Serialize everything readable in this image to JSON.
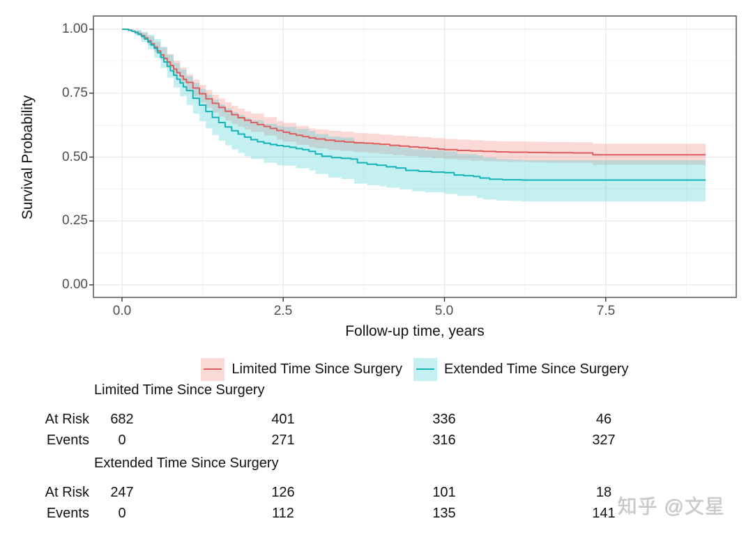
{
  "figure": {
    "watermark": "知乎 @文星"
  },
  "chart_data": {
    "type": "line",
    "subtype": "kaplan-meier-step-with-confidence-bands",
    "title": "",
    "xlabel": "Follow-up time, years",
    "ylabel": "Survival Probability",
    "xlim": [
      -0.45,
      9.5
    ],
    "ylim": [
      -0.05,
      1.05
    ],
    "x_ticks": [
      0,
      2.5,
      5,
      7.5
    ],
    "x_tick_labels": [
      "0.0",
      "2.5",
      "5.0",
      "7.5"
    ],
    "x_minor_ticks": [
      1.25,
      3.75,
      6.25,
      8.75
    ],
    "y_ticks": [
      0,
      0.25,
      0.5,
      0.75,
      1
    ],
    "y_tick_labels": [
      "0.00",
      "0.25",
      "0.50",
      "0.75",
      "1.00"
    ],
    "y_minor_ticks": [
      0.125,
      0.375,
      0.625,
      0.875
    ],
    "grid": true,
    "legend_position": "bottom",
    "t_max": 9.05,
    "panel_border_color": "#4a4a4a",
    "major_grid_color": "#e8e8e8",
    "minor_grid_color": "#f3f3f3",
    "series": [
      {
        "name": "Limited Time Since Surgery",
        "line_color": "#de5c5c",
        "band_color": "rgba(240,128,122,0.30)",
        "points": [
          [
            0,
            1.0
          ],
          [
            0.1,
            0.997
          ],
          [
            0.15,
            0.993
          ],
          [
            0.2,
            0.988
          ],
          [
            0.25,
            0.982
          ],
          [
            0.3,
            0.975
          ],
          [
            0.35,
            0.966
          ],
          [
            0.4,
            0.955
          ],
          [
            0.45,
            0.943
          ],
          [
            0.5,
            0.93
          ],
          [
            0.55,
            0.915
          ],
          [
            0.6,
            0.9
          ],
          [
            0.65,
            0.886
          ],
          [
            0.7,
            0.872
          ],
          [
            0.75,
            0.858
          ],
          [
            0.8,
            0.844
          ],
          [
            0.85,
            0.83
          ],
          [
            0.9,
            0.817
          ],
          [
            0.95,
            0.804
          ],
          [
            1.0,
            0.792
          ],
          [
            1.1,
            0.77
          ],
          [
            1.2,
            0.748
          ],
          [
            1.3,
            0.728
          ],
          [
            1.4,
            0.71
          ],
          [
            1.5,
            0.694
          ],
          [
            1.6,
            0.679
          ],
          [
            1.7,
            0.666
          ],
          [
            1.8,
            0.654
          ],
          [
            1.9,
            0.644
          ],
          [
            2.0,
            0.635
          ],
          [
            2.1,
            0.627
          ],
          [
            2.2,
            0.62
          ],
          [
            2.3,
            0.612
          ],
          [
            2.4,
            0.604
          ],
          [
            2.5,
            0.597
          ],
          [
            2.6,
            0.591
          ],
          [
            2.7,
            0.585
          ],
          [
            2.8,
            0.58
          ],
          [
            2.9,
            0.575
          ],
          [
            3.0,
            0.571
          ],
          [
            3.15,
            0.566
          ],
          [
            3.3,
            0.562
          ],
          [
            3.45,
            0.559
          ],
          [
            3.6,
            0.556
          ],
          [
            3.75,
            0.554
          ],
          [
            3.9,
            0.552
          ],
          [
            4.0,
            0.55
          ],
          [
            4.15,
            0.546
          ],
          [
            4.3,
            0.543
          ],
          [
            4.45,
            0.54
          ],
          [
            4.6,
            0.537
          ],
          [
            4.75,
            0.534
          ],
          [
            4.9,
            0.531
          ],
          [
            5.0,
            0.529
          ],
          [
            5.2,
            0.526
          ],
          [
            5.4,
            0.524
          ],
          [
            5.6,
            0.522
          ],
          [
            5.8,
            0.52
          ],
          [
            6.0,
            0.519
          ],
          [
            6.3,
            0.518
          ],
          [
            6.6,
            0.517
          ],
          [
            7.0,
            0.516
          ],
          [
            7.3,
            0.509
          ],
          [
            9.05,
            0.509
          ]
        ],
        "band": [
          [
            0,
            1.0,
            1.0
          ],
          [
            0.2,
            0.995,
            0.981
          ],
          [
            0.3,
            0.987,
            0.962
          ],
          [
            0.4,
            0.972,
            0.938
          ],
          [
            0.5,
            0.95,
            0.91
          ],
          [
            0.6,
            0.928,
            0.88
          ],
          [
            0.7,
            0.903,
            0.849
          ],
          [
            0.8,
            0.877,
            0.818
          ],
          [
            0.9,
            0.85,
            0.787
          ],
          [
            1.0,
            0.824,
            0.76
          ],
          [
            1.1,
            0.803,
            0.737
          ],
          [
            1.2,
            0.782,
            0.714
          ],
          [
            1.3,
            0.762,
            0.693
          ],
          [
            1.4,
            0.744,
            0.674
          ],
          [
            1.5,
            0.729,
            0.658
          ],
          [
            1.6,
            0.714,
            0.643
          ],
          [
            1.7,
            0.701,
            0.63
          ],
          [
            1.8,
            0.689,
            0.618
          ],
          [
            1.9,
            0.679,
            0.608
          ],
          [
            2.0,
            0.67,
            0.599
          ],
          [
            2.2,
            0.656,
            0.584
          ],
          [
            2.4,
            0.641,
            0.568
          ],
          [
            2.5,
            0.634,
            0.561
          ],
          [
            2.7,
            0.622,
            0.548
          ],
          [
            2.9,
            0.612,
            0.538
          ],
          [
            3.0,
            0.608,
            0.534
          ],
          [
            3.2,
            0.603,
            0.528
          ],
          [
            3.4,
            0.599,
            0.524
          ],
          [
            3.6,
            0.594,
            0.519
          ],
          [
            3.8,
            0.592,
            0.516
          ],
          [
            4.0,
            0.588,
            0.512
          ],
          [
            4.2,
            0.584,
            0.507
          ],
          [
            4.4,
            0.581,
            0.504
          ],
          [
            4.6,
            0.578,
            0.5
          ],
          [
            4.8,
            0.574,
            0.496
          ],
          [
            5.0,
            0.571,
            0.492
          ],
          [
            5.2,
            0.568,
            0.489
          ],
          [
            5.4,
            0.566,
            0.486
          ],
          [
            5.6,
            0.564,
            0.484
          ],
          [
            5.8,
            0.562,
            0.482
          ],
          [
            6.0,
            0.561,
            0.481
          ],
          [
            6.3,
            0.56,
            0.479
          ],
          [
            6.6,
            0.559,
            0.478
          ],
          [
            7.0,
            0.558,
            0.477
          ],
          [
            7.3,
            0.552,
            0.469
          ],
          [
            9.05,
            0.552,
            0.469
          ]
        ]
      },
      {
        "name": "Extended Time Since Surgery",
        "line_color": "#12b2b8",
        "band_color": "rgba(64,205,213,0.30)",
        "points": [
          [
            0,
            1.0
          ],
          [
            0.1,
            0.996
          ],
          [
            0.15,
            0.992
          ],
          [
            0.2,
            0.987
          ],
          [
            0.25,
            0.98
          ],
          [
            0.3,
            0.972
          ],
          [
            0.35,
            0.962
          ],
          [
            0.4,
            0.95
          ],
          [
            0.45,
            0.938
          ],
          [
            0.5,
            0.925
          ],
          [
            0.55,
            0.908
          ],
          [
            0.6,
            0.89
          ],
          [
            0.65,
            0.872
          ],
          [
            0.7,
            0.855
          ],
          [
            0.75,
            0.838
          ],
          [
            0.8,
            0.82
          ],
          [
            0.85,
            0.805
          ],
          [
            0.9,
            0.79
          ],
          [
            0.95,
            0.775
          ],
          [
            1.0,
            0.76
          ],
          [
            1.1,
            0.73
          ],
          [
            1.2,
            0.703
          ],
          [
            1.3,
            0.678
          ],
          [
            1.4,
            0.655
          ],
          [
            1.5,
            0.635
          ],
          [
            1.6,
            0.618
          ],
          [
            1.7,
            0.603
          ],
          [
            1.8,
            0.59
          ],
          [
            1.9,
            0.578
          ],
          [
            2.0,
            0.568
          ],
          [
            2.1,
            0.56
          ],
          [
            2.2,
            0.554
          ],
          [
            2.3,
            0.549
          ],
          [
            2.4,
            0.545
          ],
          [
            2.5,
            0.542
          ],
          [
            2.6,
            0.538
          ],
          [
            2.7,
            0.533
          ],
          [
            2.8,
            0.529
          ],
          [
            2.9,
            0.522
          ],
          [
            3.0,
            0.512
          ],
          [
            3.1,
            0.503
          ],
          [
            3.25,
            0.498
          ],
          [
            3.4,
            0.495
          ],
          [
            3.55,
            0.492
          ],
          [
            3.65,
            0.478
          ],
          [
            3.8,
            0.472
          ],
          [
            3.95,
            0.468
          ],
          [
            4.1,
            0.462
          ],
          [
            4.25,
            0.457
          ],
          [
            4.4,
            0.448
          ],
          [
            4.6,
            0.444
          ],
          [
            4.8,
            0.441
          ],
          [
            5.0,
            0.439
          ],
          [
            5.15,
            0.43
          ],
          [
            5.3,
            0.427
          ],
          [
            5.45,
            0.424
          ],
          [
            5.55,
            0.418
          ],
          [
            5.7,
            0.413
          ],
          [
            5.9,
            0.411
          ],
          [
            6.2,
            0.41
          ],
          [
            9.05,
            0.41
          ]
        ],
        "band": [
          [
            0,
            1.0,
            1.0
          ],
          [
            0.2,
            0.997,
            0.975
          ],
          [
            0.3,
            0.99,
            0.95
          ],
          [
            0.4,
            0.978,
            0.922
          ],
          [
            0.5,
            0.962,
            0.888
          ],
          [
            0.6,
            0.932,
            0.848
          ],
          [
            0.7,
            0.9,
            0.81
          ],
          [
            0.8,
            0.868,
            0.772
          ],
          [
            0.9,
            0.842,
            0.738
          ],
          [
            1.0,
            0.816,
            0.704
          ],
          [
            1.1,
            0.79,
            0.67
          ],
          [
            1.2,
            0.766,
            0.64
          ],
          [
            1.3,
            0.744,
            0.612
          ],
          [
            1.4,
            0.724,
            0.586
          ],
          [
            1.5,
            0.706,
            0.564
          ],
          [
            1.6,
            0.69,
            0.546
          ],
          [
            1.7,
            0.676,
            0.53
          ],
          [
            1.8,
            0.664,
            0.516
          ],
          [
            1.9,
            0.653,
            0.503
          ],
          [
            2.0,
            0.644,
            0.492
          ],
          [
            2.2,
            0.63,
            0.478
          ],
          [
            2.4,
            0.622,
            0.468
          ],
          [
            2.5,
            0.618,
            0.466
          ],
          [
            2.7,
            0.61,
            0.456
          ],
          [
            2.9,
            0.602,
            0.448
          ],
          [
            3.0,
            0.59,
            0.434
          ],
          [
            3.2,
            0.58,
            0.42
          ],
          [
            3.4,
            0.576,
            0.414
          ],
          [
            3.6,
            0.56,
            0.396
          ],
          [
            3.8,
            0.554,
            0.39
          ],
          [
            4.0,
            0.55,
            0.386
          ],
          [
            4.1,
            0.544,
            0.38
          ],
          [
            4.3,
            0.536,
            0.374
          ],
          [
            4.5,
            0.53,
            0.366
          ],
          [
            4.7,
            0.526,
            0.362
          ],
          [
            5.0,
            0.522,
            0.356
          ],
          [
            5.2,
            0.512,
            0.348
          ],
          [
            5.5,
            0.506,
            0.34
          ],
          [
            5.6,
            0.498,
            0.334
          ],
          [
            5.8,
            0.492,
            0.33
          ],
          [
            6.0,
            0.49,
            0.328
          ],
          [
            6.2,
            0.488,
            0.326
          ],
          [
            9.05,
            0.488,
            0.326
          ]
        ]
      }
    ]
  },
  "risk_tables": [
    {
      "title": "Limited Time Since Surgery",
      "rows": [
        {
          "label": "At Risk",
          "values": [
            "682",
            "401",
            "336",
            "46"
          ]
        },
        {
          "label": "Events",
          "values": [
            "0",
            "271",
            "316",
            "327"
          ]
        }
      ]
    },
    {
      "title": "Extended Time Since Surgery",
      "rows": [
        {
          "label": "At Risk",
          "values": [
            "247",
            "126",
            "101",
            "18"
          ]
        },
        {
          "label": "Events",
          "values": [
            "0",
            "112",
            "135",
            "141"
          ]
        }
      ]
    }
  ]
}
